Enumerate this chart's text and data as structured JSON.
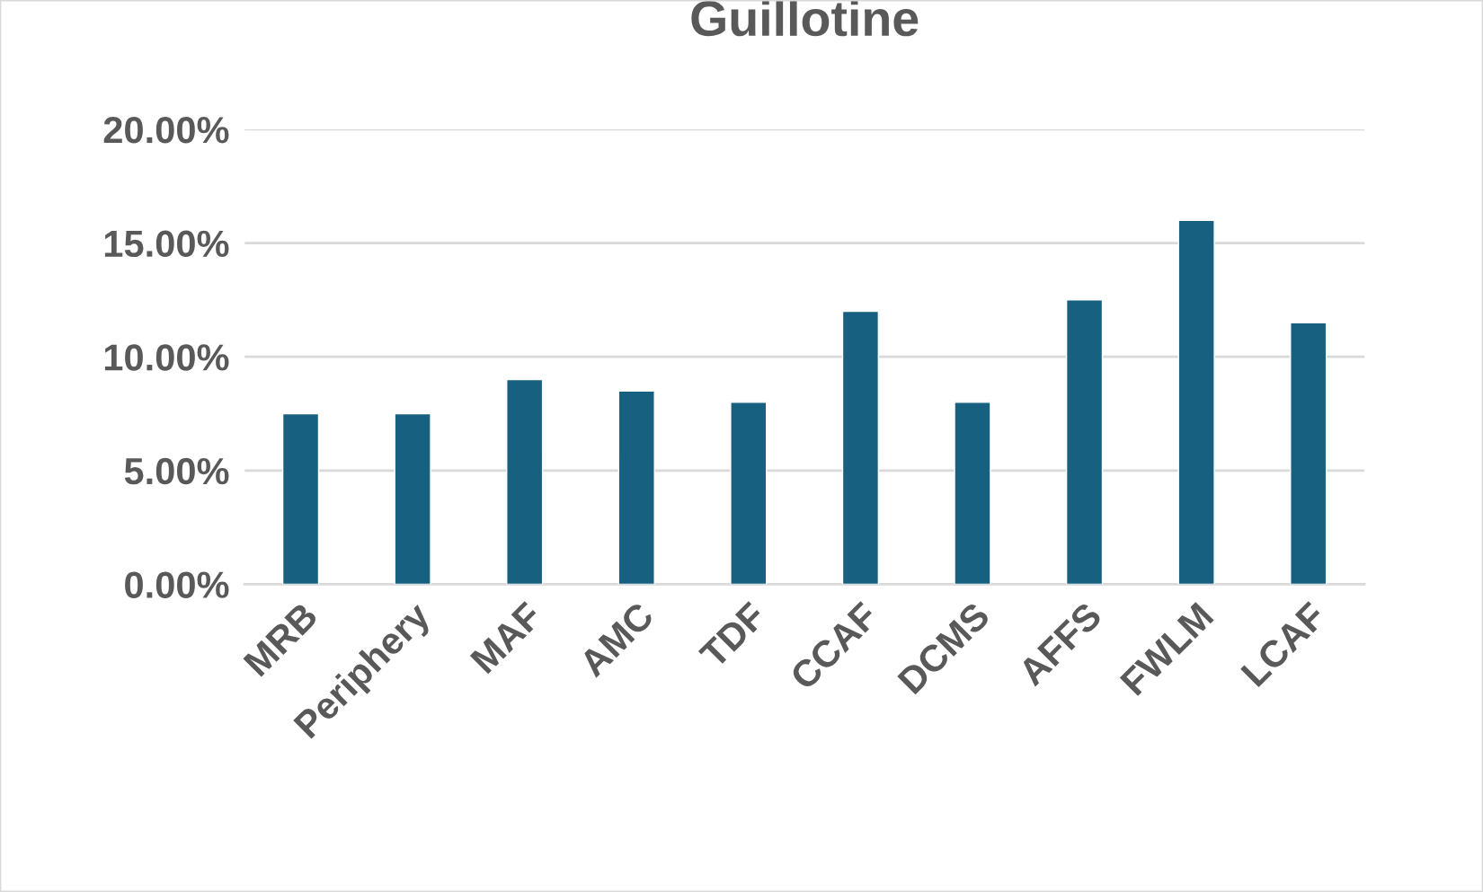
{
  "chart_data": {
    "type": "bar",
    "title": "Guillotine",
    "categories": [
      "MRB",
      "Periphery",
      "MAF",
      "AMC",
      "TDF",
      "CCAF",
      "DCMS",
      "AFFS",
      "FWLM",
      "LCAF"
    ],
    "values": [
      7.5,
      7.5,
      9.0,
      8.5,
      8.0,
      12.0,
      8.0,
      12.5,
      16.0,
      11.5
    ],
    "color": "#17607f",
    "ylim": [
      0,
      20
    ],
    "yticks": [
      {
        "value": 0,
        "label": "0.00%"
      },
      {
        "value": 5,
        "label": "5.00%"
      },
      {
        "value": 10,
        "label": "10.00%"
      },
      {
        "value": 15,
        "label": "15.00%"
      },
      {
        "value": 20,
        "label": "20.00%"
      }
    ],
    "grid": "y"
  }
}
